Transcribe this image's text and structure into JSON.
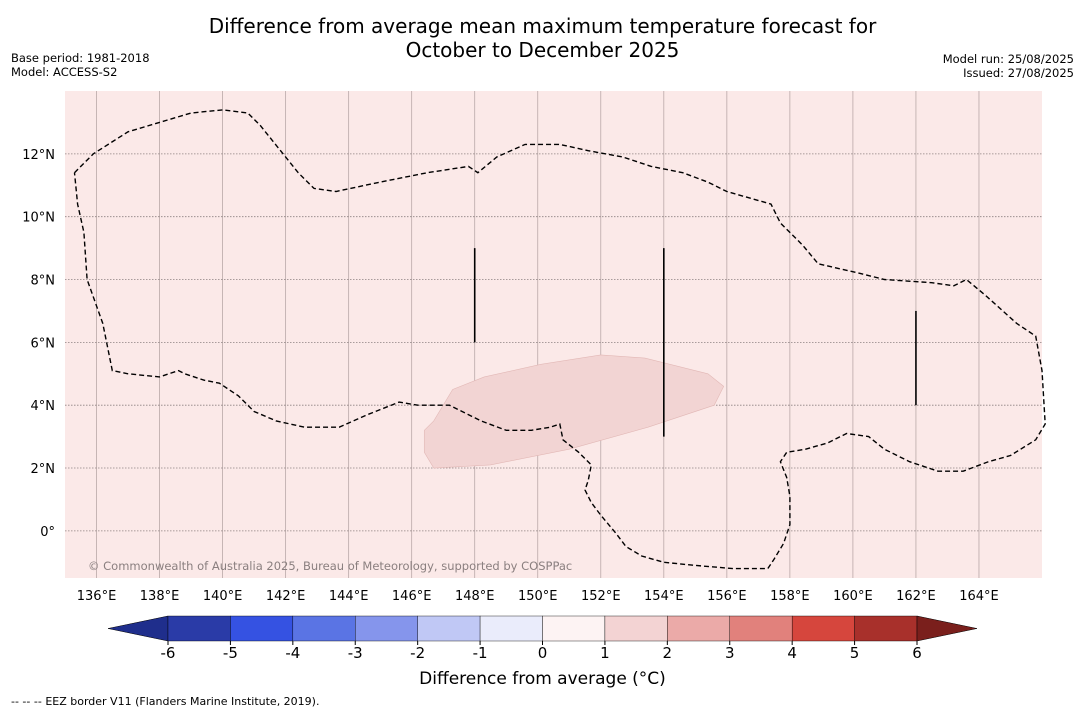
{
  "header": {
    "title_line1": "Difference from average mean maximum temperature forecast for",
    "title_line2": "October to December 2025",
    "base_period": "Base period: 1981-2018",
    "model": "Model: ACCESS-S2",
    "model_run": "Model run: 25/08/2025",
    "issued": "Issued: 27/08/2025"
  },
  "map": {
    "lon_range": [
      135,
      166
    ],
    "lat_range": [
      -1.5,
      14
    ],
    "lon_ticks": [
      {
        "value": 136,
        "label": "136°E"
      },
      {
        "value": 138,
        "label": "138°E"
      },
      {
        "value": 140,
        "label": "140°E"
      },
      {
        "value": 142,
        "label": "142°E"
      },
      {
        "value": 144,
        "label": "144°E"
      },
      {
        "value": 146,
        "label": "146°E"
      },
      {
        "value": 148,
        "label": "148°E"
      },
      {
        "value": 150,
        "label": "150°E"
      },
      {
        "value": 152,
        "label": "152°E"
      },
      {
        "value": 154,
        "label": "154°E"
      },
      {
        "value": 156,
        "label": "156°E"
      },
      {
        "value": 158,
        "label": "158°E"
      },
      {
        "value": 160,
        "label": "160°E"
      },
      {
        "value": 162,
        "label": "162°E"
      },
      {
        "value": 164,
        "label": "164°E"
      }
    ],
    "lat_ticks": [
      {
        "value": 12,
        "label": "12°N"
      },
      {
        "value": 10,
        "label": "10°N"
      },
      {
        "value": 8,
        "label": "8°N"
      },
      {
        "value": 6,
        "label": "6°N"
      },
      {
        "value": 4,
        "label": "4°N"
      },
      {
        "value": 2,
        "label": "2°N"
      },
      {
        "value": 0,
        "label": "0°"
      }
    ],
    "background_class_color": "#fbe9e8",
    "copyright": "© Commonwealth of Australia 2025, Bureau of Meteorology, supported by COSPPac",
    "anomaly_region": {
      "color": "#f2d4d3",
      "class": "1 to 2",
      "outline_lonlat": [
        [
          146.7,
          3.5
        ],
        [
          147.3,
          4.5
        ],
        [
          148.3,
          4.9
        ],
        [
          150.1,
          5.3
        ],
        [
          152.0,
          5.6
        ],
        [
          153.4,
          5.5
        ],
        [
          155.4,
          5.0
        ],
        [
          155.9,
          4.6
        ],
        [
          155.6,
          4.0
        ],
        [
          153.5,
          3.3
        ],
        [
          151.0,
          2.6
        ],
        [
          148.5,
          2.1
        ],
        [
          146.7,
          2.0
        ],
        [
          146.4,
          2.5
        ],
        [
          146.4,
          3.2
        ]
      ]
    },
    "eez_boundary_lonlat": [
      [
        135.3,
        11.4
      ],
      [
        135.9,
        12.0
      ],
      [
        137.0,
        12.7
      ],
      [
        138.0,
        13.0
      ],
      [
        139.0,
        13.3
      ],
      [
        140.0,
        13.4
      ],
      [
        140.8,
        13.3
      ],
      [
        141.2,
        12.9
      ],
      [
        142.4,
        11.4
      ],
      [
        142.9,
        10.9
      ],
      [
        143.6,
        10.8
      ],
      [
        145.0,
        11.1
      ],
      [
        146.5,
        11.4
      ],
      [
        147.8,
        11.6
      ],
      [
        148.1,
        11.4
      ],
      [
        148.7,
        11.9
      ],
      [
        149.6,
        12.3
      ],
      [
        150.7,
        12.3
      ],
      [
        151.6,
        12.1
      ],
      [
        152.7,
        11.9
      ],
      [
        153.6,
        11.6
      ],
      [
        154.6,
        11.4
      ],
      [
        155.4,
        11.1
      ],
      [
        156.0,
        10.8
      ],
      [
        157.4,
        10.4
      ],
      [
        157.7,
        9.8
      ],
      [
        158.4,
        9.1
      ],
      [
        158.9,
        8.5
      ],
      [
        160.2,
        8.2
      ],
      [
        161.0,
        8.0
      ],
      [
        162.5,
        7.9
      ],
      [
        163.2,
        7.8
      ],
      [
        163.6,
        8.0
      ],
      [
        164.2,
        7.5
      ],
      [
        165.2,
        6.6
      ],
      [
        165.8,
        6.2
      ],
      [
        166.0,
        5.1
      ],
      [
        166.1,
        3.4
      ],
      [
        165.8,
        2.9
      ],
      [
        165.0,
        2.4
      ],
      [
        164.3,
        2.2
      ],
      [
        163.5,
        1.9
      ],
      [
        162.7,
        1.9
      ],
      [
        161.8,
        2.2
      ],
      [
        161.0,
        2.6
      ],
      [
        160.5,
        3.0
      ],
      [
        159.8,
        3.1
      ],
      [
        159.2,
        2.8
      ],
      [
        158.5,
        2.6
      ],
      [
        157.9,
        2.5
      ],
      [
        157.7,
        2.2
      ],
      [
        157.9,
        1.7
      ],
      [
        158.0,
        1.1
      ],
      [
        158.0,
        0.2
      ],
      [
        157.8,
        -0.4
      ],
      [
        157.5,
        -0.9
      ],
      [
        157.3,
        -1.2
      ],
      [
        156.2,
        -1.2
      ],
      [
        155.0,
        -1.1
      ],
      [
        154.0,
        -1.0
      ],
      [
        153.3,
        -0.8
      ],
      [
        152.8,
        -0.5
      ],
      [
        152.5,
        -0.1
      ],
      [
        152.0,
        0.5
      ],
      [
        151.7,
        0.9
      ],
      [
        151.5,
        1.3
      ],
      [
        151.6,
        1.6
      ],
      [
        151.7,
        2.1
      ],
      [
        151.3,
        2.5
      ],
      [
        150.8,
        2.9
      ],
      [
        150.7,
        3.4
      ],
      [
        150.4,
        3.3
      ],
      [
        149.8,
        3.2
      ],
      [
        149.0,
        3.2
      ],
      [
        148.2,
        3.5
      ],
      [
        147.6,
        3.8
      ],
      [
        147.2,
        4.0
      ],
      [
        146.2,
        4.0
      ],
      [
        145.6,
        4.1
      ],
      [
        144.6,
        3.7
      ],
      [
        143.7,
        3.3
      ],
      [
        142.6,
        3.3
      ],
      [
        141.7,
        3.5
      ],
      [
        141.0,
        3.8
      ],
      [
        140.5,
        4.3
      ],
      [
        139.9,
        4.7
      ],
      [
        139.4,
        4.8
      ],
      [
        138.8,
        5.0
      ],
      [
        138.6,
        5.1
      ],
      [
        138.0,
        4.9
      ],
      [
        137.0,
        5.0
      ],
      [
        136.5,
        5.1
      ],
      [
        136.2,
        6.6
      ],
      [
        135.7,
        8.0
      ],
      [
        135.6,
        9.5
      ],
      [
        135.4,
        10.4
      ],
      [
        135.3,
        11.4
      ]
    ],
    "eez_vertical_segments_lonlat": [
      [
        [
          148.0,
          9.0
        ],
        [
          148.0,
          6.0
        ]
      ],
      [
        [
          154.0,
          9.0
        ],
        [
          154.0,
          3.0
        ]
      ],
      [
        [
          162.0,
          7.0
        ],
        [
          162.0,
          4.0
        ]
      ]
    ]
  },
  "legend": {
    "colors": [
      "#1f2e8c",
      "#2a3ba7",
      "#3552e2",
      "#5a74e4",
      "#8595ec",
      "#c0c8f5",
      "#eaecfb",
      "#fdf3f3",
      "#f3d3d3",
      "#ebaaa8",
      "#e1817c",
      "#d6463d",
      "#a8302b",
      "#7a1f1c"
    ],
    "tick_labels": [
      "-6",
      "-5",
      "-4",
      "-3",
      "-2",
      "-1",
      "0",
      "1",
      "2",
      "3",
      "4",
      "5",
      "6"
    ],
    "title": "Difference from average (°C)"
  },
  "footer": {
    "dash_symbol": "-- -- --",
    "note": "EEZ border V11 (Flanders Marine Institute, 2019)."
  }
}
